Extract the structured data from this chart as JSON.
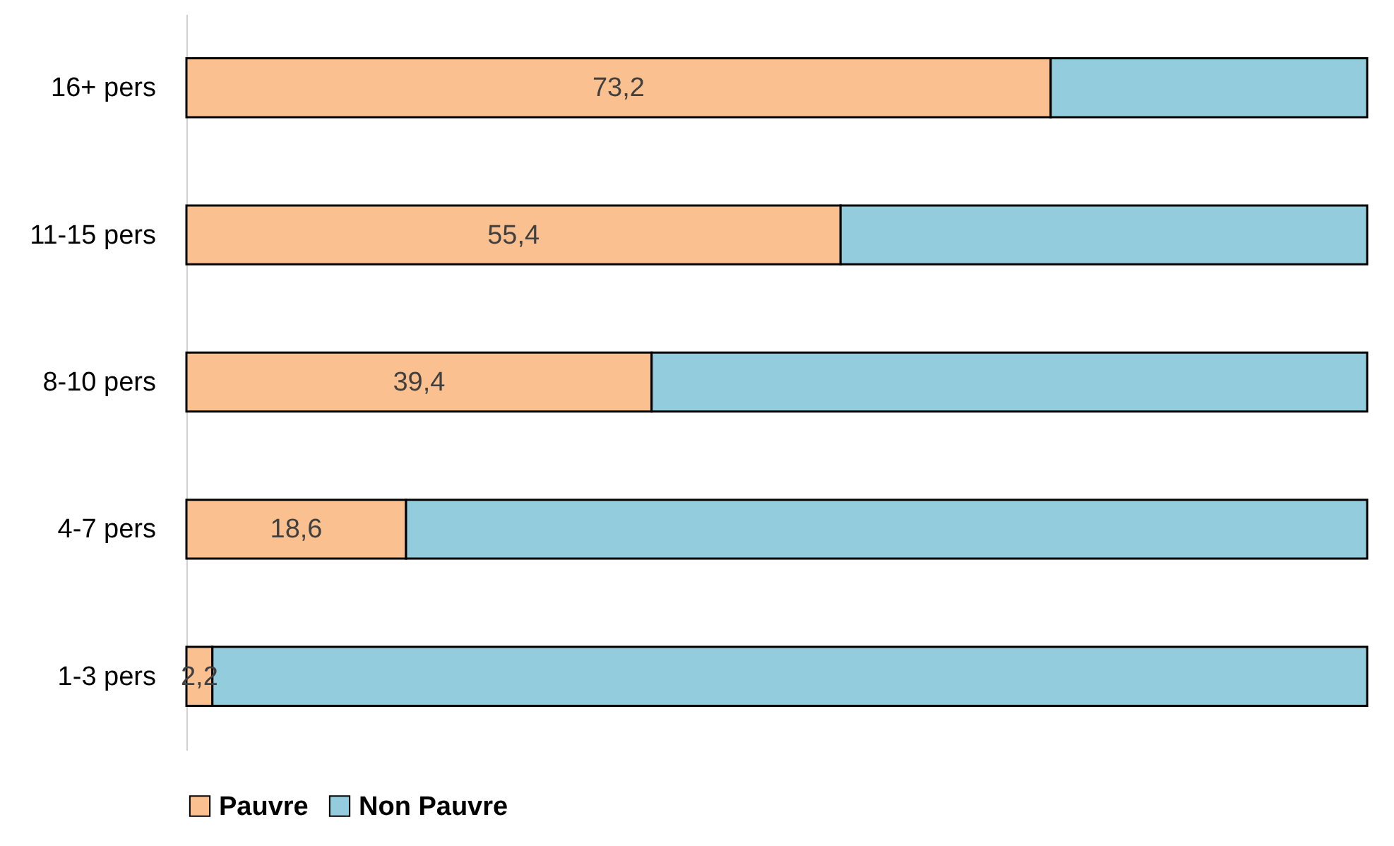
{
  "chart_data": {
    "type": "bar",
    "orientation": "horizontal",
    "stacked": true,
    "legend": "bottom",
    "categories": [
      "16+ pers",
      "11-15 pers",
      "8-10 pers",
      "4-7 pers",
      "1-3 pers"
    ],
    "series": [
      {
        "name": "Pauvre",
        "color": "#fac090",
        "values": [
          73.2,
          55.4,
          39.4,
          18.6,
          2.2
        ],
        "value_labels": [
          "73,2",
          "55,4",
          "39,4",
          "18,6",
          "2,2"
        ]
      },
      {
        "name": "Non Pauvre",
        "color": "#93cddd",
        "values": [
          26.8,
          44.6,
          60.6,
          81.4,
          97.8
        ]
      }
    ]
  }
}
